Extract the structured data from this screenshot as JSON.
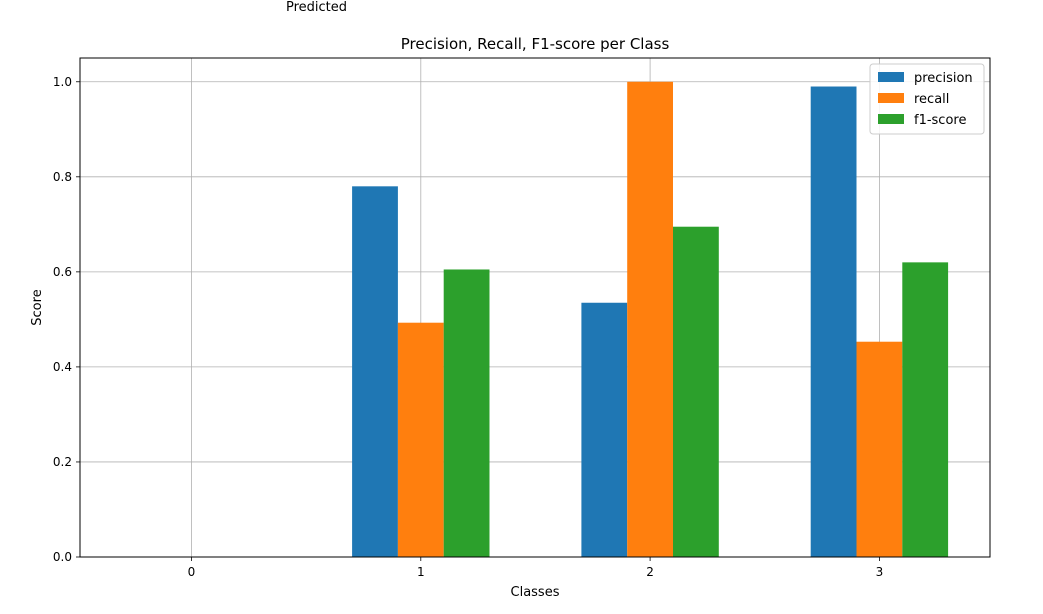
{
  "residual_label": "Predicted",
  "chart_data": {
    "type": "bar",
    "title": "Precision, Recall, F1-score per Class",
    "xlabel": "Classes",
    "ylabel": "Score",
    "categories": [
      "0",
      "1",
      "2",
      "3"
    ],
    "ylim": [
      0,
      1.05
    ],
    "yticks": [
      "0.0",
      "0.2",
      "0.4",
      "0.6",
      "0.8",
      "1.0"
    ],
    "grid": true,
    "legend_position": "top-right",
    "series": [
      {
        "name": "precision",
        "color": "#1f77b4",
        "values": [
          0,
          0.78,
          0.535,
          0.99
        ]
      },
      {
        "name": "recall",
        "color": "#ff7f0e",
        "values": [
          0,
          0.493,
          1.0,
          0.453
        ]
      },
      {
        "name": "f1-score",
        "color": "#2ca02c",
        "values": [
          0,
          0.605,
          0.695,
          0.62
        ]
      }
    ]
  }
}
